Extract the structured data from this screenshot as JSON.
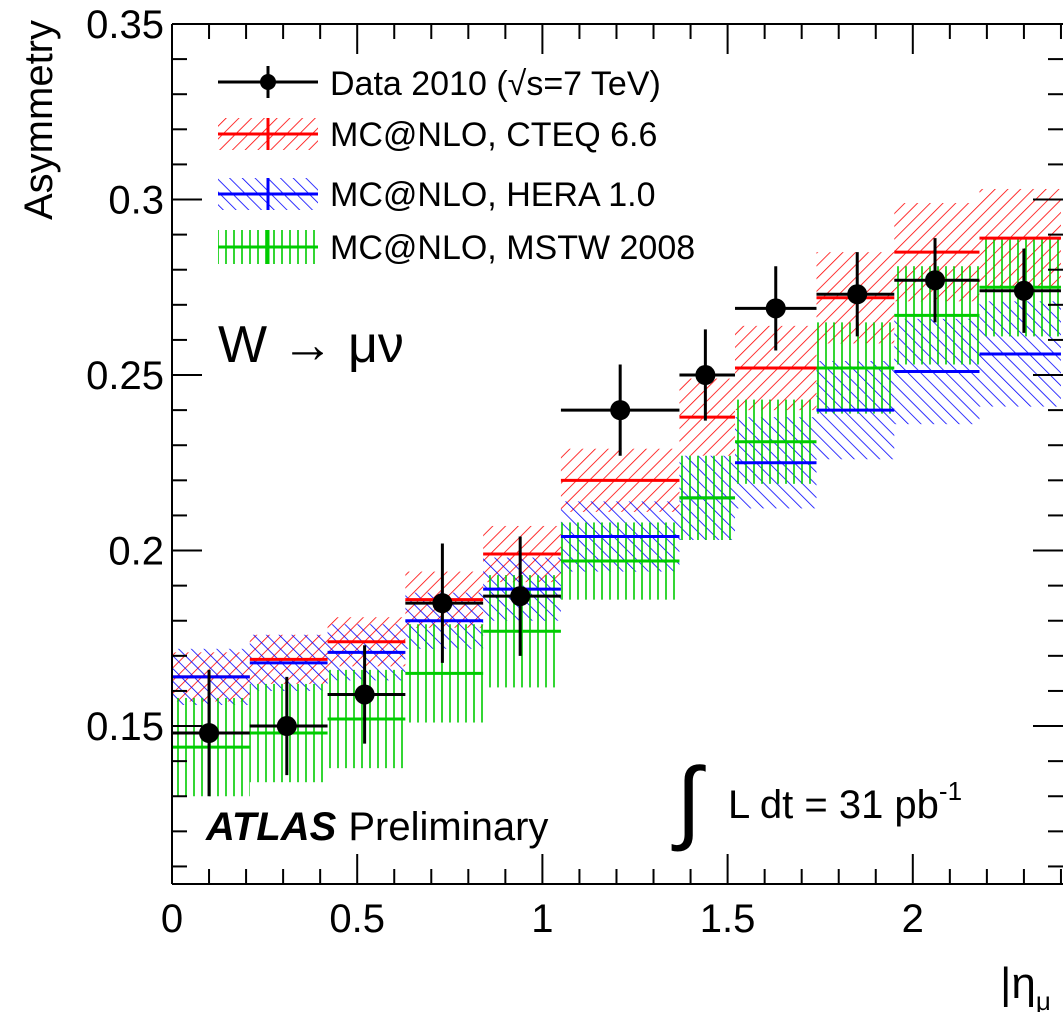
{
  "chart_data": {
    "type": "scatter",
    "xlabel": "|η",
    "xlabel_sub": "μ",
    "ylabel": "Asymmetry",
    "xlim": [
      0,
      2.4
    ],
    "ylim": [
      0.105,
      0.35
    ],
    "xticks": [
      "0",
      "0.5",
      "1",
      "1.5",
      "2"
    ],
    "yticks": [
      "0.15",
      "0.2",
      "0.25",
      "0.3",
      "0.35"
    ],
    "bins": [
      [
        0,
        0.21
      ],
      [
        0.21,
        0.42
      ],
      [
        0.42,
        0.63
      ],
      [
        0.63,
        0.84
      ],
      [
        0.84,
        1.05
      ],
      [
        1.05,
        1.37
      ],
      [
        1.37,
        1.52
      ],
      [
        1.52,
        1.74
      ],
      [
        1.74,
        1.95
      ],
      [
        1.95,
        2.18
      ],
      [
        2.18,
        2.4
      ]
    ],
    "series": [
      {
        "name": "Data 2010 (√s=7 TeV)",
        "kind": "data",
        "color": "#000000",
        "x": [
          0.1,
          0.31,
          0.52,
          0.73,
          0.94,
          1.21,
          1.44,
          1.63,
          1.85,
          2.06,
          2.3
        ],
        "values": [
          0.148,
          0.15,
          0.159,
          0.185,
          0.187,
          0.24,
          0.25,
          0.269,
          0.273,
          0.277,
          0.274
        ],
        "errors": [
          0.018,
          0.014,
          0.014,
          0.017,
          0.017,
          0.013,
          0.013,
          0.012,
          0.012,
          0.012,
          0.012
        ]
      },
      {
        "name": "MC@NLO, CTEQ 6.6",
        "kind": "band",
        "color": "#ff0000",
        "hatch": "forward",
        "values": [
          0.164,
          0.169,
          0.174,
          0.186,
          0.199,
          0.22,
          0.238,
          0.252,
          0.272,
          0.285,
          0.289
        ],
        "half_widths": [
          0.007,
          0.007,
          0.007,
          0.008,
          0.008,
          0.009,
          0.011,
          0.012,
          0.013,
          0.014,
          0.014
        ]
      },
      {
        "name": "MC@NLO, HERA 1.0",
        "kind": "band",
        "color": "#0000ff",
        "hatch": "back",
        "values": [
          0.164,
          0.168,
          0.171,
          0.18,
          0.189,
          0.204,
          0.215,
          0.225,
          0.24,
          0.251,
          0.256
        ],
        "half_widths": [
          0.008,
          0.008,
          0.008,
          0.008,
          0.009,
          0.01,
          0.012,
          0.013,
          0.014,
          0.015,
          0.015
        ]
      },
      {
        "name": "MC@NLO, MSTW 2008",
        "kind": "band",
        "color": "#00cc00",
        "hatch": "vertical",
        "values": [
          0.144,
          0.148,
          0.152,
          0.165,
          0.177,
          0.197,
          0.215,
          0.231,
          0.252,
          0.267,
          0.275
        ],
        "half_widths": [
          0.014,
          0.014,
          0.014,
          0.014,
          0.016,
          0.011,
          0.012,
          0.012,
          0.013,
          0.014,
          0.014
        ]
      }
    ],
    "legend_placement": "top-left",
    "annotations": {
      "process": "W → μν",
      "experiment": "ATLAS",
      "status": "Preliminary",
      "luminosity_main": "L dt = 31 pb",
      "luminosity_exp": "-1"
    }
  }
}
